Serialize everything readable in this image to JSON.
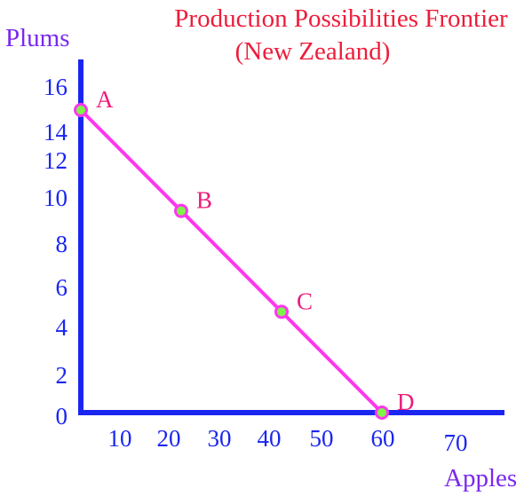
{
  "colors": {
    "title": "#ee1c3a",
    "axis_title": "#7a28f0",
    "axis": "#1a26f0",
    "tick_label": "#1a26f0",
    "line": "#ff36ee",
    "point_fill": "#7ef44a",
    "point_stroke": "#ff36ee",
    "point_label": "#ee1c7a"
  },
  "chart_data": {
    "type": "line",
    "title": [
      "Production Possibilities Frontier",
      "(New Zealand)"
    ],
    "xlabel": "Apples",
    "ylabel": "Plums",
    "x_ticks": [
      {
        "value": 10,
        "label": "10"
      },
      {
        "value": 20,
        "label": "20"
      },
      {
        "value": 30,
        "label": "30"
      },
      {
        "value": 40,
        "label": "40"
      },
      {
        "value": 50,
        "label": "50"
      },
      {
        "value": 60,
        "label": "60"
      },
      {
        "value": 70,
        "label": "70"
      }
    ],
    "y_ticks": [
      {
        "value": 0,
        "label": "0"
      },
      {
        "value": 2,
        "label": "2"
      },
      {
        "value": 4,
        "label": "4"
      },
      {
        "value": 6,
        "label": "6"
      },
      {
        "value": 8,
        "label": "8"
      },
      {
        "value": 10,
        "label": "10"
      },
      {
        "value": 12,
        "label": "12"
      },
      {
        "value": 14,
        "label": "14"
      },
      {
        "value": 16,
        "label": "16"
      }
    ],
    "series": [
      {
        "points": [
          {
            "label": "A",
            "x": 0,
            "y": 15
          },
          {
            "label": "B",
            "x": 20,
            "y": 10
          },
          {
            "label": "C",
            "x": 40,
            "y": 5
          },
          {
            "label": "D",
            "x": 60,
            "y": 0
          }
        ]
      }
    ],
    "grid": false,
    "legend": "none"
  }
}
